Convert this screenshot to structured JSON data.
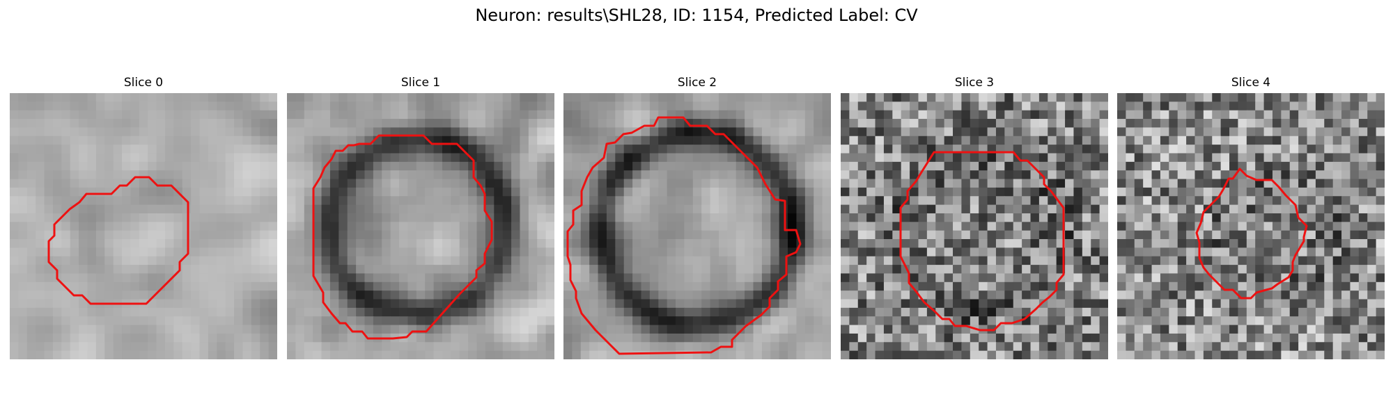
{
  "figure": {
    "title": "Neuron: results\\SHL28, ID: 1154, Predicted Label: CV"
  },
  "slices": [
    {
      "label": "Slice 0",
      "seed": 11,
      "mean": 0.68,
      "noise": 0.1,
      "smooth": 3,
      "ring": 0.08,
      "ringWidth": 0.07,
      "center": [
        0.48,
        0.52
      ],
      "radius": 0.2
    },
    {
      "label": "Slice 1",
      "seed": 23,
      "mean": 0.66,
      "noise": 0.12,
      "smooth": 2,
      "ring": 0.42,
      "ringWidth": 0.06,
      "center": [
        0.49,
        0.5
      ],
      "radius": 0.33
    },
    {
      "label": "Slice 2",
      "seed": 37,
      "mean": 0.64,
      "noise": 0.12,
      "smooth": 2,
      "ring": 0.48,
      "ringWidth": 0.06,
      "center": [
        0.5,
        0.51
      ],
      "radius": 0.36
    },
    {
      "label": "Slice 3",
      "seed": 41,
      "mean": 0.52,
      "noise": 0.22,
      "smooth": 0,
      "ring": 0.12,
      "ringWidth": 0.08,
      "center": [
        0.52,
        0.52
      ],
      "radius": 0.3
    },
    {
      "label": "Slice 4",
      "seed": 53,
      "mean": 0.55,
      "noise": 0.22,
      "smooth": 0,
      "ring": 0.1,
      "ringWidth": 0.08,
      "center": [
        0.6,
        0.54
      ],
      "radius": 0.2
    }
  ],
  "contour_color": "#ee1111"
}
